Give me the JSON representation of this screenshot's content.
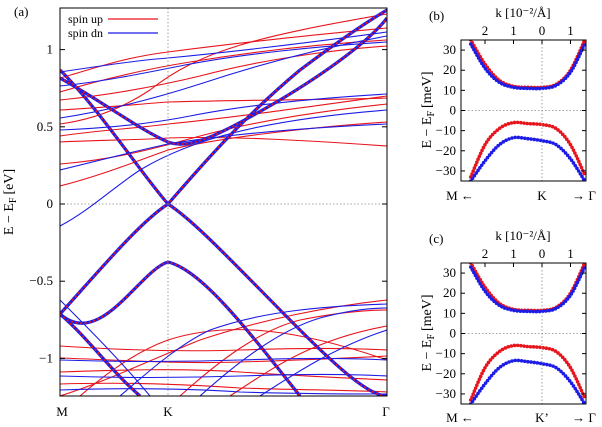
{
  "panels": {
    "a": {
      "label": "(a)",
      "ylabel": "E − E",
      "ylabel_sub": "F",
      "ylabel_unit": "[eV]",
      "ylim": [
        -1.25,
        1.25
      ],
      "yticks": [
        "1",
        "0.5",
        "0",
        "−0.5",
        "−1"
      ],
      "ytick_values": [
        1,
        0.5,
        0,
        -0.5,
        -1
      ],
      "xticks": [
        "M",
        "K",
        "Γ"
      ],
      "legend": [
        {
          "label": "spin up",
          "color": "#e8141c"
        },
        {
          "label": "spin dn",
          "color": "#1c1ce6"
        }
      ]
    },
    "b": {
      "label": "(b)",
      "top_axis_label": "k [10⁻²/Å]",
      "top_ticks": [
        "2",
        "1",
        "0",
        "1"
      ],
      "ylabel": "E − E",
      "ylabel_sub": "F",
      "ylabel_unit": "[meV]",
      "ylim": [
        -35,
        35
      ],
      "yticks": [
        "30",
        "20",
        "10",
        "0",
        "−10",
        "−20",
        "−30"
      ],
      "xlabels": {
        "left": "M ←",
        "center": "K",
        "right": "→ Γ"
      }
    },
    "c": {
      "label": "(c)",
      "top_axis_label": "k [10⁻²/Å]",
      "top_ticks": [
        "2",
        "1",
        "0",
        "1"
      ],
      "ylabel": "E − E",
      "ylabel_sub": "F",
      "ylabel_unit": "[meV]",
      "ylim": [
        -35,
        35
      ],
      "yticks": [
        "30",
        "20",
        "10",
        "0",
        "−10",
        "−20",
        "−30"
      ],
      "xlabels": {
        "left": "M ←",
        "center": "K’",
        "right": "→ Γ"
      }
    }
  },
  "colors": {
    "spin_up": "#e8141c",
    "spin_dn": "#1c1ce6"
  },
  "chart_data": [
    {
      "type": "line",
      "panel": "a",
      "title": "",
      "x_positions": [
        "M",
        "K",
        "Γ"
      ],
      "ylim": [
        -1.25,
        1.25
      ],
      "grid": false,
      "legend_position": "top-left",
      "series": [
        {
          "name": "spin up",
          "band": "conduction",
          "x": [
            0,
            0.5,
            1
          ],
          "y": [
            0.8,
            0.39,
            1.05
          ]
        },
        {
          "name": "spin up",
          "band": "valence top",
          "x": [
            0,
            0.5,
            1
          ],
          "y": [
            -0.72,
            0.0,
            -1.25
          ]
        },
        {
          "name": "spin up",
          "band": "valence 2",
          "x": [
            0,
            0.5,
            1
          ],
          "y": [
            -0.72,
            -0.38,
            -1.25
          ]
        },
        {
          "name": "spin dn",
          "band": "conduction",
          "x": [
            0,
            0.5,
            1
          ],
          "y": [
            0.8,
            0.39,
            1.05
          ]
        },
        {
          "name": "spin dn",
          "band": "valence top",
          "x": [
            0,
            0.5,
            1
          ],
          "y": [
            -0.72,
            0.0,
            -1.25
          ]
        },
        {
          "name": "spin dn",
          "band": "valence 2",
          "x": [
            0,
            0.5,
            1
          ],
          "y": [
            -0.72,
            -0.38,
            -1.25
          ]
        }
      ]
    },
    {
      "type": "line",
      "panel": "b",
      "xlabel": "k [10⁻²/Å]",
      "ylabel": "E − E_F [meV]",
      "ylim": [
        -35,
        35
      ],
      "series": [
        {
          "name": "spin up",
          "x": [
            2.5,
            2,
            1.5,
            1,
            0.5,
            0,
            -0.5,
            -1,
            -1.5
          ],
          "y": [
            35,
            23,
            15,
            12,
            11.5,
            11.5,
            13,
            20,
            35
          ]
        },
        {
          "name": "spin dn",
          "x": [
            2.5,
            2,
            1.5,
            1,
            0.5,
            0,
            -0.5,
            -1,
            -1.5
          ],
          "y": [
            33,
            21,
            14,
            11.5,
            11,
            11,
            12.5,
            19,
            33
          ]
        },
        {
          "name": "spin up",
          "x": [
            2.5,
            2,
            1.5,
            1,
            0.5,
            0,
            -0.5,
            -1,
            -1.5
          ],
          "y": [
            -33,
            -17,
            -9,
            -6,
            -6.5,
            -7,
            -9,
            -17,
            -32
          ]
        },
        {
          "name": "spin dn",
          "x": [
            2.5,
            2,
            1.5,
            1,
            0.5,
            0,
            -0.5,
            -1,
            -1.5
          ],
          "y": [
            -35,
            -25,
            -17,
            -13.5,
            -14,
            -15,
            -17,
            -24,
            -35
          ]
        }
      ]
    },
    {
      "type": "line",
      "panel": "c",
      "xlabel": "k [10⁻²/Å]",
      "ylabel": "E − E_F [meV]",
      "ylim": [
        -35,
        35
      ],
      "series": [
        {
          "name": "spin up",
          "x": [
            2.5,
            2,
            1.5,
            1,
            0.5,
            0,
            -0.5,
            -1,
            -1.5
          ],
          "y": [
            35,
            23,
            15,
            12,
            11.5,
            11.5,
            13,
            20,
            35
          ]
        },
        {
          "name": "spin dn",
          "x": [
            2.5,
            2,
            1.5,
            1,
            0.5,
            0,
            -0.5,
            -1,
            -1.5
          ],
          "y": [
            33,
            21,
            14,
            11.5,
            11,
            11,
            12.5,
            19,
            33
          ]
        },
        {
          "name": "spin up",
          "x": [
            2.5,
            2,
            1.5,
            1,
            0.5,
            0,
            -0.5,
            -1,
            -1.5
          ],
          "y": [
            -33,
            -17,
            -9,
            -6,
            -6.5,
            -7,
            -9,
            -17,
            -32
          ]
        },
        {
          "name": "spin dn",
          "x": [
            2.5,
            2,
            1.5,
            1,
            0.5,
            0,
            -0.5,
            -1,
            -1.5
          ],
          "y": [
            -35,
            -25,
            -17,
            -13.5,
            -14,
            -15,
            -17,
            -24,
            -35
          ]
        }
      ]
    }
  ]
}
